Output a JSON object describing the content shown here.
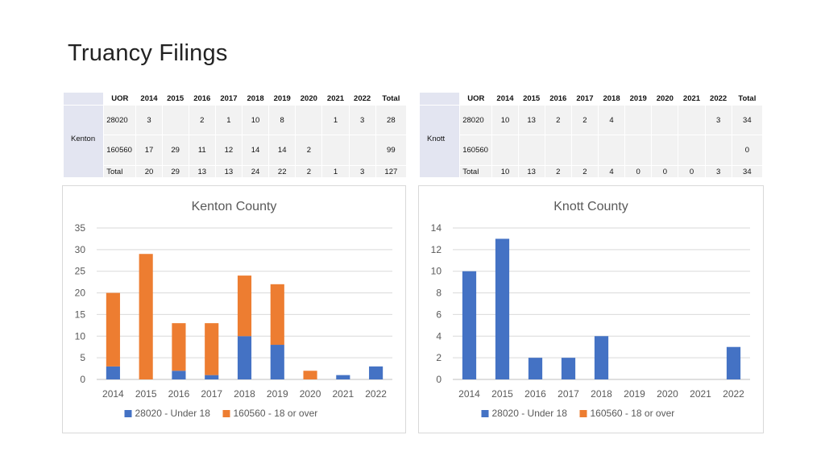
{
  "page": {
    "title": "Truancy Filings"
  },
  "tables": [
    {
      "county": "Kenton",
      "headers": [
        "UOR",
        "2014",
        "2015",
        "2016",
        "2017",
        "2018",
        "2019",
        "2020",
        "2021",
        "2022",
        "Total"
      ],
      "rows": [
        {
          "label": "28020",
          "cells": [
            "3",
            "",
            "2",
            "1",
            "10",
            "8",
            "",
            "1",
            "3",
            "28"
          ]
        },
        {
          "label": "160560",
          "cells": [
            "17",
            "29",
            "11",
            "12",
            "14",
            "14",
            "2",
            "",
            "",
            "99"
          ]
        },
        {
          "label": "Total",
          "cells": [
            "20",
            "29",
            "13",
            "13",
            "24",
            "22",
            "2",
            "1",
            "3",
            "127"
          ]
        }
      ]
    },
    {
      "county": "Knott",
      "headers": [
        "UOR",
        "2014",
        "2015",
        "2016",
        "2017",
        "2018",
        "2019",
        "2020",
        "2021",
        "2022",
        "Total"
      ],
      "rows": [
        {
          "label": "28020",
          "cells": [
            "10",
            "13",
            "2",
            "2",
            "4",
            "",
            "",
            "",
            "3",
            "34"
          ]
        },
        {
          "label": "160560",
          "cells": [
            "",
            "",
            "",
            "",
            "",
            "",
            "",
            "",
            "",
            "0"
          ]
        },
        {
          "label": "Total",
          "cells": [
            "10",
            "13",
            "2",
            "2",
            "4",
            "0",
            "0",
            "0",
            "3",
            "34"
          ]
        }
      ]
    }
  ],
  "chart_data": [
    {
      "type": "bar",
      "stacked": true,
      "title": "Kenton County",
      "categories": [
        "2014",
        "2015",
        "2016",
        "2017",
        "2018",
        "2019",
        "2020",
        "2021",
        "2022"
      ],
      "series": [
        {
          "name": "28020 - Under 18",
          "values": [
            3,
            0,
            2,
            1,
            10,
            8,
            0,
            1,
            3
          ],
          "color": "#4472c4"
        },
        {
          "name": "160560 - 18 or over",
          "values": [
            17,
            29,
            11,
            12,
            14,
            14,
            2,
            0,
            0
          ],
          "color": "#ed7d31"
        }
      ],
      "ylim": [
        0,
        35
      ],
      "yticks": [
        0,
        5,
        10,
        15,
        20,
        25,
        30,
        35
      ],
      "grid": true,
      "legend": "bottom"
    },
    {
      "type": "bar",
      "stacked": true,
      "title": "Knott County",
      "categories": [
        "2014",
        "2015",
        "2016",
        "2017",
        "2018",
        "2019",
        "2020",
        "2021",
        "2022"
      ],
      "series": [
        {
          "name": "28020 - Under 18",
          "values": [
            10,
            13,
            2,
            2,
            4,
            0,
            0,
            0,
            3
          ],
          "color": "#4472c4"
        },
        {
          "name": "160560 - 18 or over",
          "values": [
            0,
            0,
            0,
            0,
            0,
            0,
            0,
            0,
            0
          ],
          "color": "#ed7d31"
        }
      ],
      "ylim": [
        0,
        14
      ],
      "yticks": [
        0,
        2,
        4,
        6,
        8,
        10,
        12,
        14
      ],
      "grid": true,
      "legend": "bottom"
    }
  ]
}
